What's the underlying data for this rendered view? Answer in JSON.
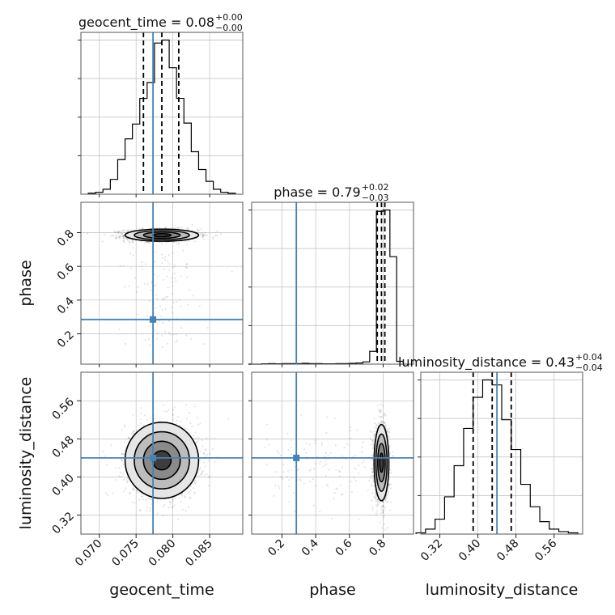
{
  "chart_data": {
    "type": "corner",
    "parameters": [
      "geocent_time",
      "phase",
      "luminosity_distance"
    ],
    "titles": [
      {
        "param": "geocent_time",
        "text": "geocent_time = 0.08",
        "sup": "+0.00",
        "sub": "−0.00"
      },
      {
        "param": "phase",
        "text": "phase = 0.79",
        "sup": "+0.02",
        "sub": "−0.03"
      },
      {
        "param": "luminosity_distance",
        "text": "luminosity_distance = 0.43",
        "sup": "+0.04",
        "sub": "−0.04"
      }
    ],
    "ranges": {
      "geocent_time": [
        0.0675,
        0.0895
      ],
      "phase": [
        0.02,
        0.98
      ],
      "luminosity_distance": [
        0.28,
        0.62
      ]
    },
    "ticks": {
      "geocent_time": {
        "values": [
          0.07,
          0.075,
          0.08,
          0.085
        ],
        "labels": [
          "0.070",
          "0.075",
          "0.080",
          "0.085"
        ]
      },
      "phase": {
        "values": [
          0.2,
          0.4,
          0.6,
          0.8
        ],
        "labels": [
          "0.2",
          "0.4",
          "0.6",
          "0.8"
        ]
      },
      "luminosity_distance": {
        "values": [
          0.32,
          0.4,
          0.48,
          0.56
        ],
        "labels": [
          "0.32",
          "0.40",
          "0.48",
          "0.56"
        ]
      }
    },
    "truths": {
      "geocent_time": 0.0773,
      "phase": 0.285,
      "luminosity_distance": 0.44
    },
    "quantiles": {
      "geocent_time": [
        0.076,
        0.0785,
        0.0808
      ],
      "phase": [
        0.765,
        0.79,
        0.81
      ],
      "luminosity_distance": [
        0.39,
        0.43,
        0.47
      ]
    },
    "histograms": {
      "geocent_time": {
        "edges": [
          0.0685,
          0.0695,
          0.0705,
          0.0715,
          0.0725,
          0.0735,
          0.0745,
          0.0755,
          0.0765,
          0.0775,
          0.0785,
          0.0795,
          0.0805,
          0.0815,
          0.0825,
          0.0835,
          0.0845,
          0.0855,
          0.0865,
          0.0875,
          0.0885
        ],
        "counts": [
          1,
          2,
          5,
          15,
          35,
          56,
          71,
          97,
          113,
          153,
          156,
          128,
          97,
          72,
          43,
          25,
          13,
          5,
          2,
          1
        ]
      },
      "phase": {
        "edges": [
          0.0,
          0.04,
          0.08,
          0.12,
          0.16,
          0.2,
          0.24,
          0.28,
          0.32,
          0.36,
          0.4,
          0.44,
          0.48,
          0.52,
          0.56,
          0.6,
          0.64,
          0.68,
          0.72,
          0.76,
          0.8,
          0.84,
          0.88,
          0.92
        ],
        "counts": [
          0,
          0,
          1,
          2,
          1,
          2,
          2,
          2,
          3,
          2,
          2,
          1,
          1,
          2,
          2,
          3,
          4,
          8,
          45,
          540,
          545,
          380,
          10
        ]
      },
      "luminosity_distance": {
        "edges": [
          0.27,
          0.29,
          0.31,
          0.33,
          0.35,
          0.37,
          0.39,
          0.41,
          0.43,
          0.45,
          0.47,
          0.49,
          0.51,
          0.53,
          0.55,
          0.57,
          0.59,
          0.61
        ],
        "counts": [
          1,
          4,
          12,
          30,
          55,
          85,
          110,
          124,
          120,
          92,
          68,
          40,
          22,
          10,
          4,
          2,
          1
        ]
      }
    },
    "posterior_2d": {
      "geocent_time_phase": {
        "mean": [
          0.0785,
          0.785
        ],
        "sd": [
          0.0025,
          0.018
        ],
        "outliers_phase_range": [
          0.1,
          0.7
        ]
      },
      "geocent_time_luminosity_distance": {
        "mean": [
          0.0785,
          0.435
        ],
        "sd": [
          0.0025,
          0.04
        ]
      },
      "phase_luminosity_distance": {
        "mean": [
          0.79,
          0.43
        ],
        "sd": [
          0.022,
          0.04
        ],
        "outliers_phase_range": [
          0.1,
          0.7
        ]
      }
    },
    "grid": true,
    "legend": "none"
  }
}
